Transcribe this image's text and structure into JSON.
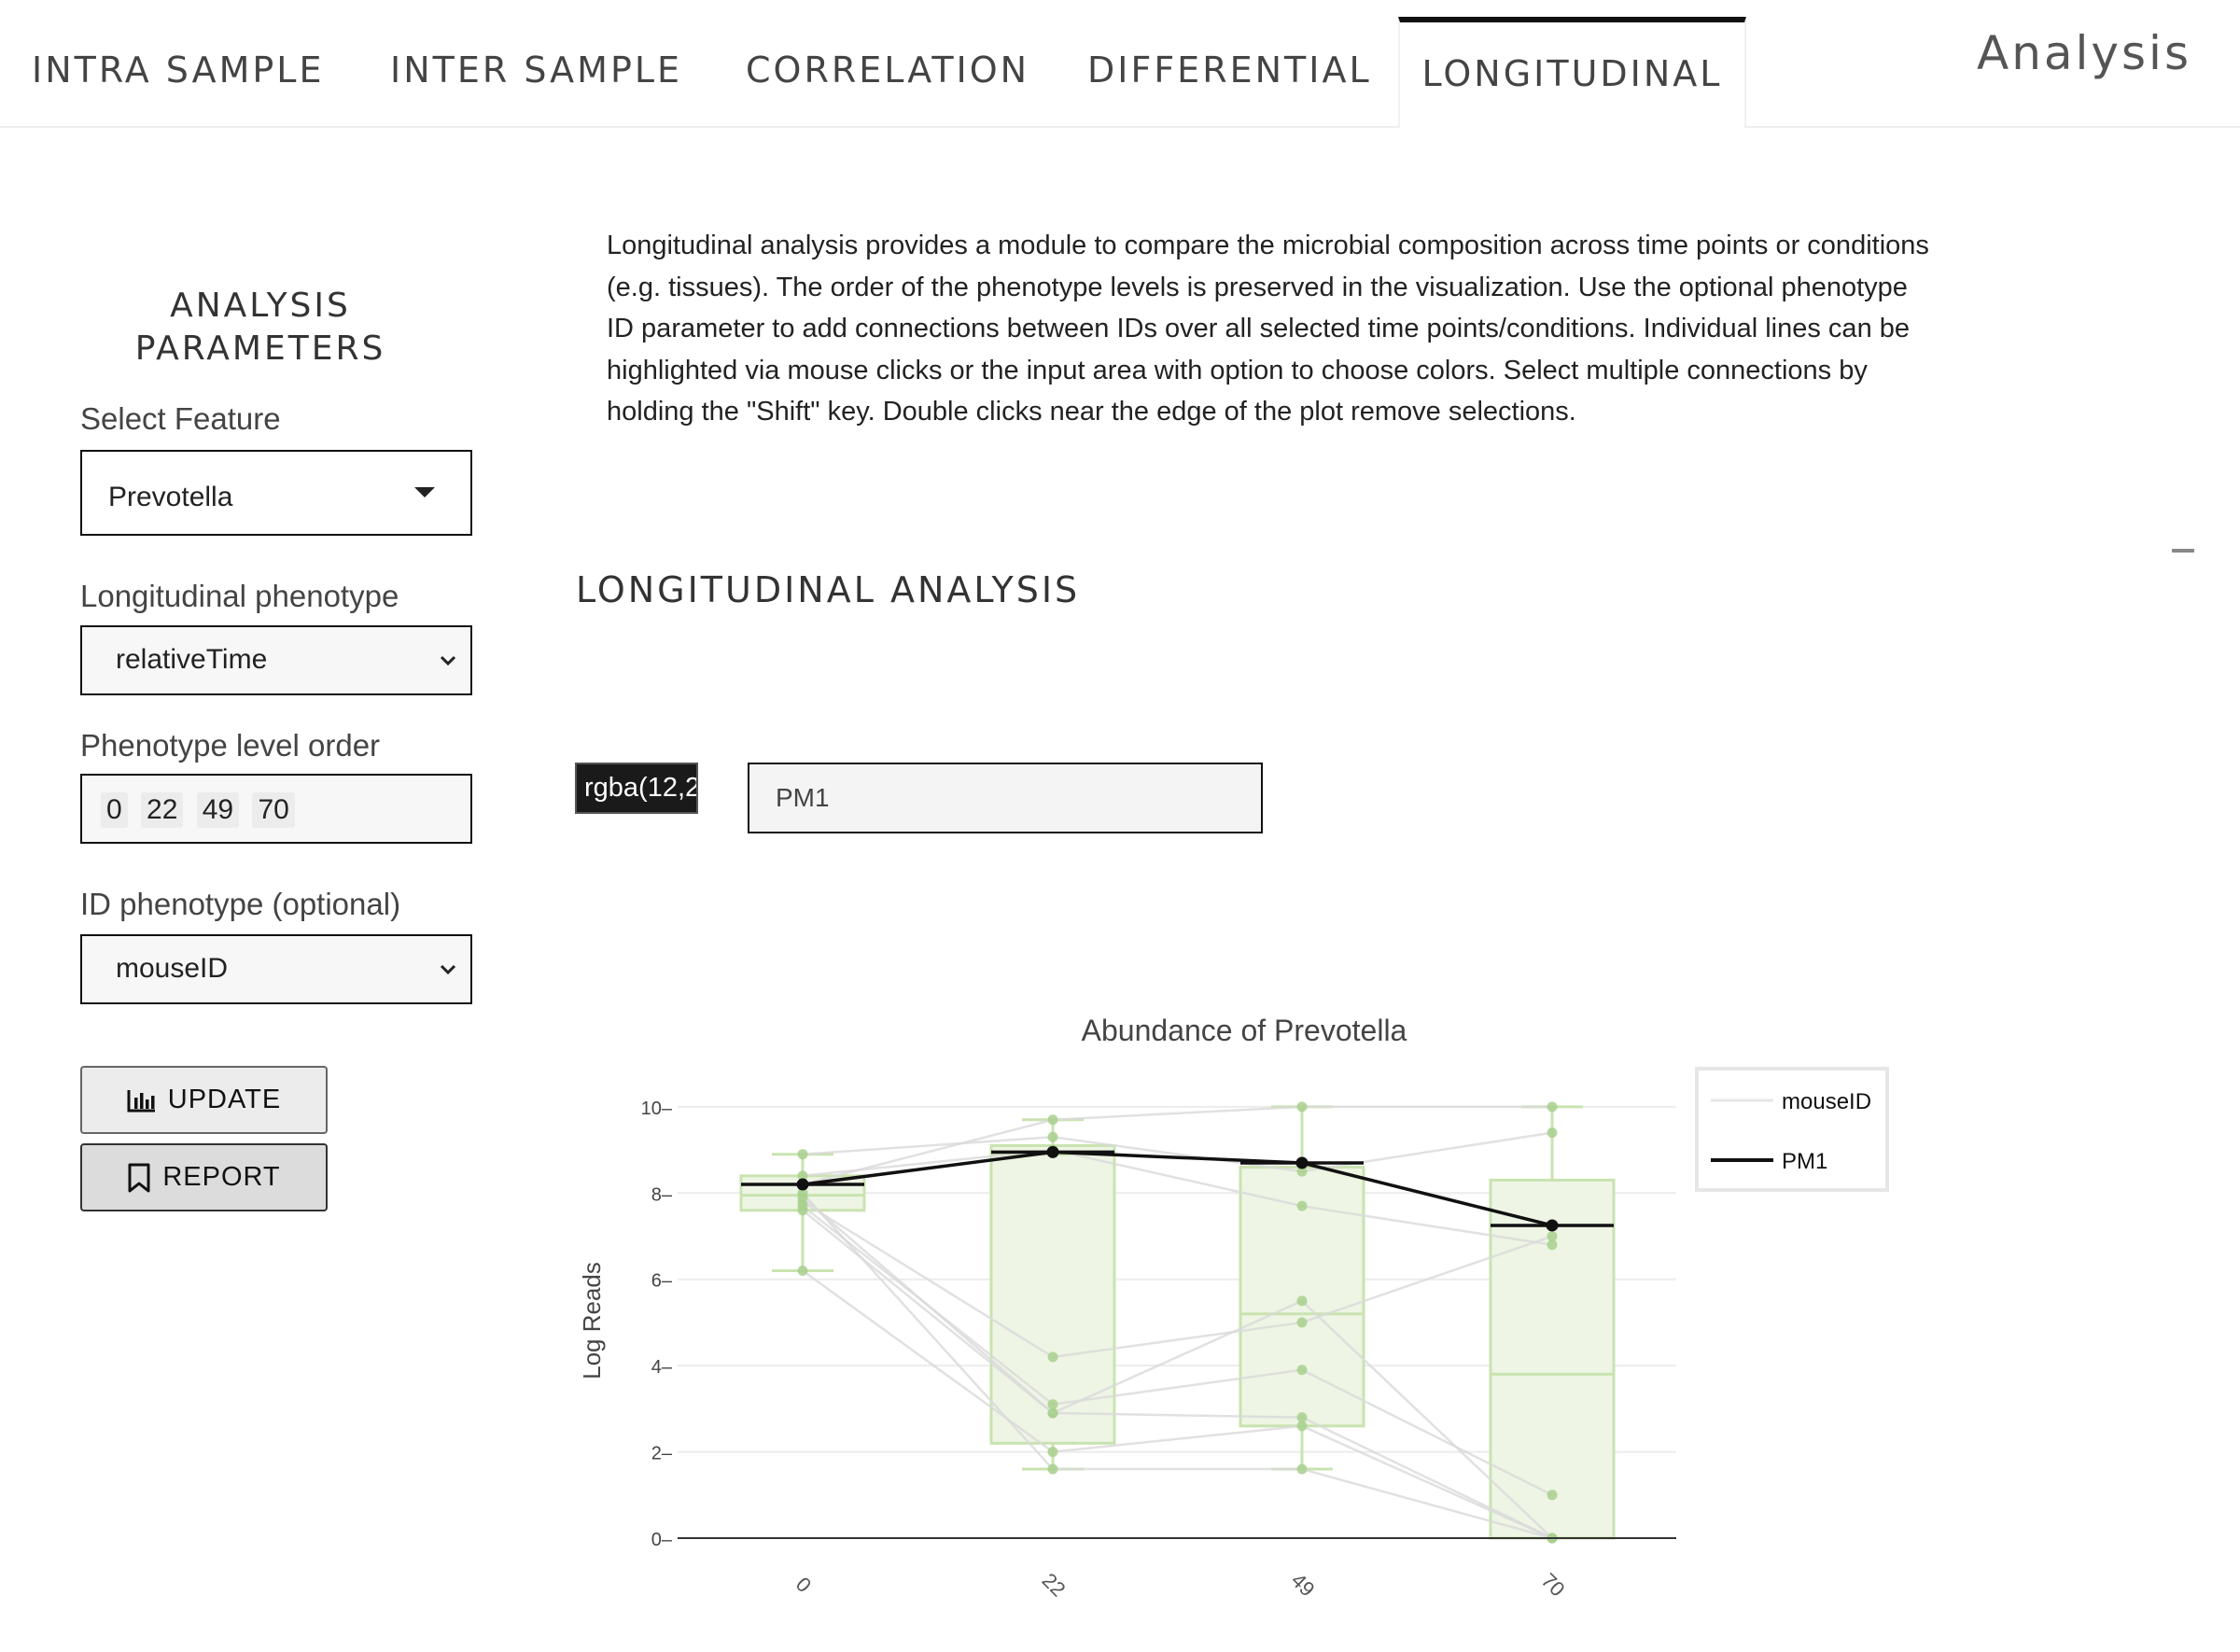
{
  "nav": {
    "tabs": [
      {
        "label": "INTRA SAMPLE",
        "active": false
      },
      {
        "label": "INTER SAMPLE",
        "active": false
      },
      {
        "label": "CORRELATION",
        "active": false
      },
      {
        "label": "DIFFERENTIAL",
        "active": false
      },
      {
        "label": "LONGITUDINAL",
        "active": true
      }
    ],
    "brand": "Analysis"
  },
  "sidebar": {
    "title": "ANALYSIS PARAMETERS",
    "feature": {
      "label": "Select Feature",
      "value": "Prevotella"
    },
    "phenotype": {
      "label": "Longitudinal phenotype",
      "value": "relativeTime"
    },
    "level_order": {
      "label": "Phenotype level order",
      "values": [
        "0",
        "22",
        "49",
        "70"
      ]
    },
    "id_phenotype": {
      "label": "ID phenotype (optional)",
      "value": "mouseID"
    },
    "update_label": "UPDATE",
    "report_label": "REPORT"
  },
  "main": {
    "description": "Longitudinal analysis provides a module to compare the microbial composition across time points or conditions (e.g. tissues). The order of the phenotype levels is preserved in the visualization. Use the optional phenotype ID parameter to add connections between IDs over all selected time points/conditions. Individual lines can be highlighted via mouse clicks or the input area with option to choose colors. Select multiple connections by holding the \"Shift\" key. Double clicks near the edge of the plot remove selections.",
    "section_title": "LONGITUDINAL ANALYSIS",
    "color_value": "rgba(12,2",
    "id_value": "PM1"
  },
  "colors": {
    "box_fill": "#eef5e4",
    "box_line": "#c9e3b0",
    "points": "#a8d08d",
    "grey_lines": "#d9d9d9",
    "highlight": "#111111"
  },
  "chart_data": {
    "type": "box",
    "title": "Abundance of Prevotella",
    "xlabel": "",
    "ylabel": "Log Reads",
    "categories": [
      "0",
      "22",
      "49",
      "70"
    ],
    "yticks": [
      0,
      2,
      4,
      6,
      8,
      10
    ],
    "ylim": [
      0,
      10.3
    ],
    "grid": true,
    "legend_position": "top-right",
    "legend": [
      "mouseID",
      "PM1"
    ],
    "boxes": [
      {
        "category": "0",
        "q1": 7.6,
        "median": 7.95,
        "q3": 8.4,
        "whisker_low": 6.2,
        "whisker_high": 8.9
      },
      {
        "category": "22",
        "q1": 2.2,
        "median": 8.9,
        "q3": 9.1,
        "whisker_low": 1.6,
        "whisker_high": 9.7
      },
      {
        "category": "49",
        "q1": 2.6,
        "median": 5.2,
        "q3": 8.6,
        "whisker_low": 1.6,
        "whisker_high": 10.0
      },
      {
        "category": "70",
        "q1": 0.0,
        "median": 3.8,
        "q3": 8.3,
        "whisker_low": 0.0,
        "whisker_high": 10.0
      }
    ],
    "id_lines": [
      [
        8.2,
        9.7,
        10.0,
        10.0
      ],
      [
        8.9,
        9.3,
        8.5,
        9.4
      ],
      [
        8.4,
        9.0,
        7.7,
        6.8
      ],
      [
        7.8,
        4.2,
        5.0,
        7.0
      ],
      [
        7.7,
        3.1,
        3.9,
        1.0
      ],
      [
        7.6,
        2.9,
        2.8,
        0.0
      ],
      [
        6.2,
        2.0,
        2.6,
        0.0
      ],
      [
        8.0,
        1.6,
        1.6,
        0.0
      ],
      [
        7.9,
        2.9,
        5.5,
        0.0
      ]
    ],
    "highlight": {
      "name": "PM1",
      "values": [
        8.2,
        8.95,
        8.7,
        7.25
      ]
    }
  }
}
